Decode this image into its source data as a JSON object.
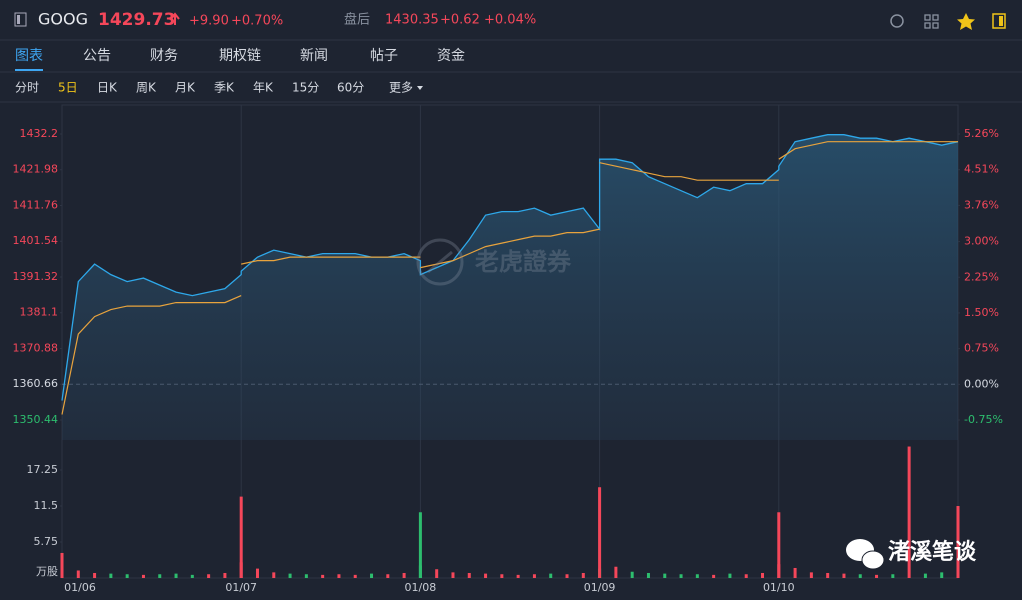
{
  "header": {
    "symbol": "GOOG",
    "price": "1429.73",
    "change": "+9.90",
    "change_pct": "+0.70%",
    "after_label": "盘后",
    "after_price": "1430.35",
    "after_change": "+0.62",
    "after_change_pct": "+0.04%"
  },
  "tabs": [
    "图表",
    "公告",
    "财务",
    "期权链",
    "新闻",
    "帖子",
    "资金"
  ],
  "active_tab": 0,
  "periods": [
    "分时",
    "5日",
    "日K",
    "周K",
    "月K",
    "季K",
    "年K",
    "15分",
    "60分",
    "更多"
  ],
  "active_period": 1,
  "watermark": "老虎證券",
  "footer_brand": "渚溪笔谈",
  "chart_data": {
    "type": "line",
    "days": [
      "01/06",
      "01/07",
      "01/08",
      "01/09",
      "01/10"
    ],
    "points_per_day": 12,
    "ylim": [
      1344.72,
      1440.49
    ],
    "yticks": [
      1432.2,
      1421.98,
      1411.76,
      1401.54,
      1391.32,
      1381.1,
      1370.88,
      1360.66,
      1350.44
    ],
    "baseline": 1360.66,
    "y2lim": [
      -1.17,
      5.87
    ],
    "y2ticks": [
      {
        "value": 5.26,
        "label": "5.26%"
      },
      {
        "value": 4.51,
        "label": "4.51%"
      },
      {
        "value": 3.76,
        "label": "3.76%"
      },
      {
        "value": 3.0,
        "label": "3.00%"
      },
      {
        "value": 2.25,
        "label": "2.25%"
      },
      {
        "value": 1.5,
        "label": "1.50%"
      },
      {
        "value": 0.75,
        "label": "0.75%"
      },
      {
        "value": 0.0,
        "label": "0.00%"
      },
      {
        "value": -0.75,
        "label": "-0.75%"
      }
    ],
    "series": [
      {
        "name": "price",
        "color": "#2ea8ea",
        "values": [
          1356,
          1390,
          1395,
          1392,
          1390,
          1391,
          1389,
          1387,
          1386,
          1387,
          1388,
          1392,
          1393,
          1397,
          1399,
          1398,
          1397,
          1398,
          1398,
          1398,
          1397,
          1397,
          1398,
          1396,
          1392,
          1394,
          1396,
          1402,
          1409,
          1410,
          1410,
          1411,
          1409,
          1410,
          1411,
          1405,
          1425,
          1425,
          1424,
          1420,
          1418,
          1416,
          1414,
          1417,
          1416,
          1418,
          1418,
          1422,
          1423,
          1430,
          1431,
          1432,
          1432,
          1431,
          1431,
          1430,
          1431,
          1430,
          1429,
          1430
        ]
      },
      {
        "name": "average",
        "color": "#e8a33d",
        "values": [
          1352,
          1375,
          1380,
          1382,
          1383,
          1383,
          1383,
          1384,
          1384,
          1384,
          1384,
          1386,
          1395,
          1396,
          1396,
          1397,
          1397,
          1397,
          1397,
          1397,
          1397,
          1397,
          1397,
          1397,
          1394,
          1395,
          1396,
          1398,
          1400,
          1401,
          1402,
          1403,
          1403,
          1404,
          1404,
          1405,
          1424,
          1423,
          1422,
          1421,
          1420,
          1420,
          1419,
          1419,
          1419,
          1419,
          1419,
          1419,
          1425,
          1428,
          1429,
          1430,
          1430,
          1430,
          1430,
          1430,
          1430,
          1430,
          1430,
          1430
        ]
      }
    ],
    "volume": {
      "unit": "万股",
      "ylim": [
        0,
        21.5
      ],
      "yticks": [
        17.25,
        11.5,
        5.75
      ],
      "values": [
        4,
        1.2,
        0.8,
        0.7,
        0.6,
        0.5,
        0.6,
        0.7,
        0.5,
        0.6,
        0.8,
        2.5,
        13,
        1.5,
        0.9,
        0.7,
        0.6,
        0.5,
        0.6,
        0.5,
        0.7,
        0.6,
        0.8,
        2,
        10.5,
        1.4,
        0.9,
        0.8,
        0.7,
        0.6,
        0.5,
        0.6,
        0.7,
        0.6,
        0.8,
        1.5,
        14.5,
        1.8,
        1,
        0.8,
        0.7,
        0.6,
        0.6,
        0.5,
        0.7,
        0.6,
        0.8,
        2.2,
        10.5,
        1.6,
        0.9,
        0.8,
        0.7,
        0.6,
        0.5,
        0.6,
        21,
        0.7,
        0.9,
        11.5
      ]
    },
    "up_color": "#f5475a",
    "down_color": "#2dbd6e"
  }
}
